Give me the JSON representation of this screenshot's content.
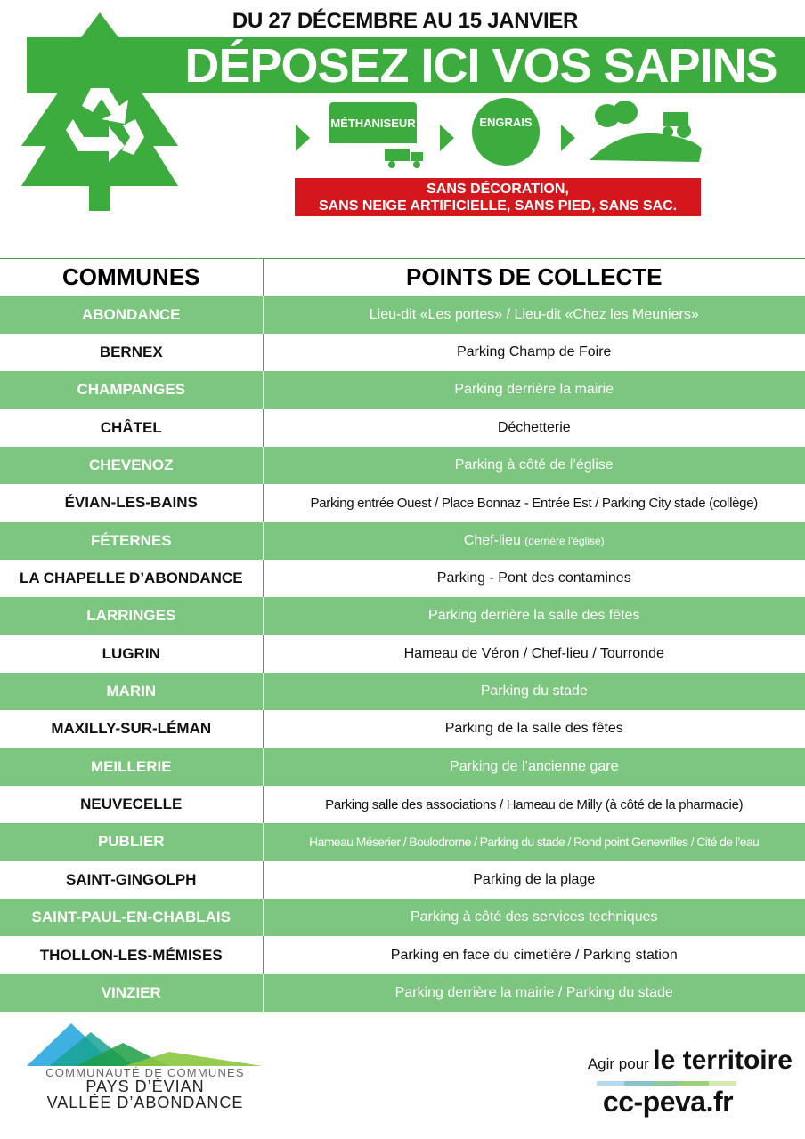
{
  "colors": {
    "green": "#3dac3f",
    "row": "#7dc67f",
    "red": "#d4171c"
  },
  "header": {
    "dates": "DU 27 DÉCEMBRE AU 15 JANVIER",
    "title": "DÉPOSEZ ICI VOS SAPINS",
    "steps": [
      "MÉTHANISEUR",
      "ENGRAIS"
    ],
    "warning_line1": "SANS DÉCORATION,",
    "warning_line2": "SANS NEIGE ARTIFICIELLE, SANS PIED, SANS SAC."
  },
  "table": {
    "headers": [
      "COMMUNES",
      "POINTS DE COLLECTE"
    ],
    "rows": [
      {
        "commune": "ABONDANCE",
        "point": "Lieu-dit «Les portes» / Lieu-dit «Chez les Meuniers»"
      },
      {
        "commune": "BERNEX",
        "point": "Parking Champ de Foire"
      },
      {
        "commune": "CHAMPANGES",
        "point": "Parking derrière la mairie"
      },
      {
        "commune": "CHÂTEL",
        "point": "Déchetterie"
      },
      {
        "commune": "CHEVENOZ",
        "point": "Parking à côté de l’église"
      },
      {
        "commune": "ÉVIAN-LES-BAINS",
        "point": "Parking entrée Ouest / Place Bonnaz - Entrée Est /  Parking City stade (collège)"
      },
      {
        "commune": "FÉTERNES",
        "point": "Chef-lieu",
        "note": "(derrière l’église)"
      },
      {
        "commune": "LA CHAPELLE D’ABONDANCE",
        "point": "Parking - Pont des contamines"
      },
      {
        "commune": "LARRINGES",
        "point": "Parking derrière la salle des fêtes"
      },
      {
        "commune": "LUGRIN",
        "point": "Hameau de Véron / Chef-lieu / Tourronde"
      },
      {
        "commune": "MARIN",
        "point": "Parking du stade"
      },
      {
        "commune": "MAXILLY-SUR-LÉMAN",
        "point": "Parking de la salle des fêtes"
      },
      {
        "commune": "MEILLERIE",
        "point": "Parking de l’ancienne gare"
      },
      {
        "commune": "NEUVECELLE",
        "point": "Parking salle des associations / Hameau de Milly (à côté de la pharmacie)"
      },
      {
        "commune": "PUBLIER",
        "point": "Hameau Méserier / Boulodrome / Parking du stade / Rond point Genevrilles / Cité de l’eau"
      },
      {
        "commune": "SAINT-GINGOLPH",
        "point": "Parking de la plage"
      },
      {
        "commune": "SAINT-PAUL-EN-CHABLAIS",
        "point": "Parking à côté des services techniques"
      },
      {
        "commune": "THOLLON-LES-MÉMISES",
        "point": "Parking en face du cimetière / Parking station"
      },
      {
        "commune": "VINZIER",
        "point": "Parking derrière la mairie / Parking du stade"
      }
    ]
  },
  "footer": {
    "logo_line1": "COMMUNAUTÉ DE COMMUNES",
    "logo_line2": "PAYS D’ÉVIAN",
    "logo_line3": "VALLÉE D’ABONDANCE",
    "slogan_small": "Agir pour",
    "slogan_big": "le territoire",
    "website": "cc-peva.fr"
  }
}
